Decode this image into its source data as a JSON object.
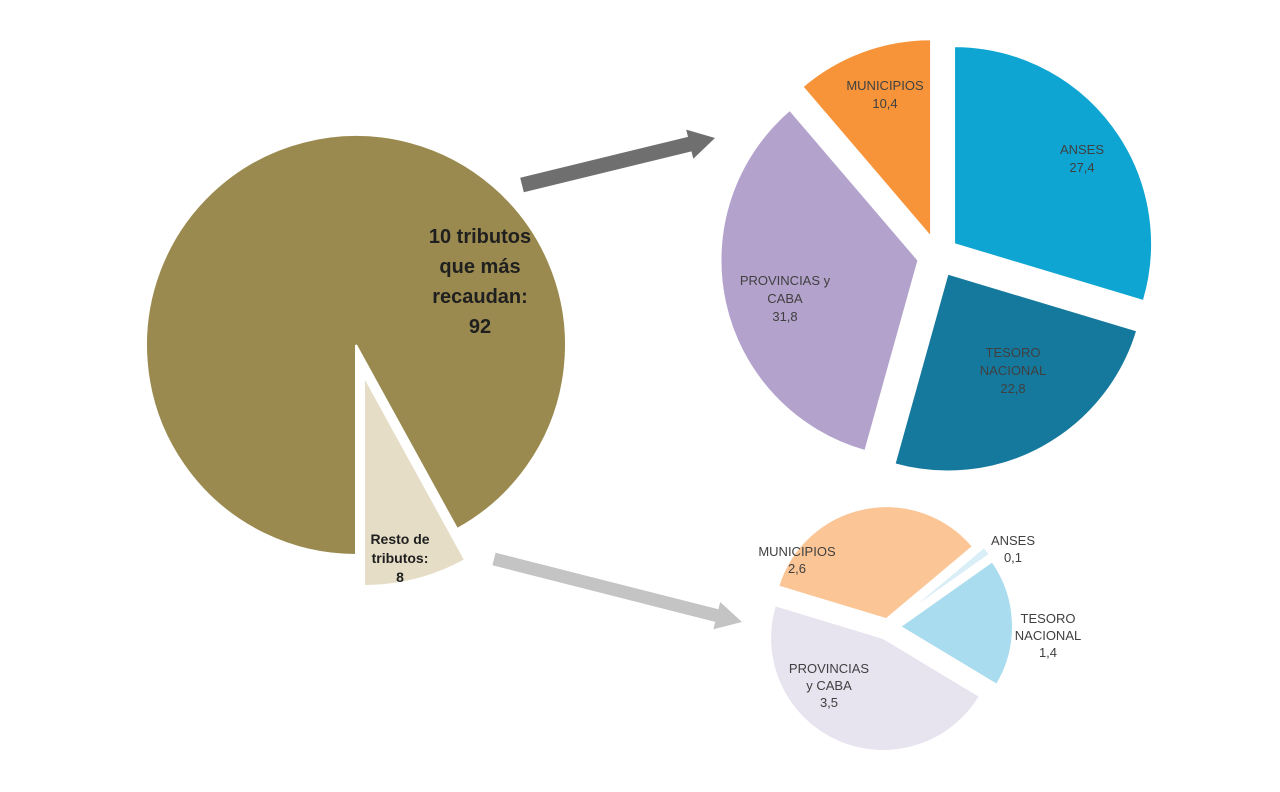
{
  "chart_data": [
    {
      "type": "pie",
      "name": "total",
      "slices": [
        {
          "label_lines": [
            "10 tributos",
            "que más",
            "recaudan:",
            "92"
          ],
          "value": 92,
          "color": "#9a8a4f",
          "exploded": false
        },
        {
          "label_lines": [
            "Resto de",
            "tributos:",
            "8"
          ],
          "value": 8,
          "color": "#e5ddc6",
          "exploded": true
        }
      ]
    },
    {
      "type": "pie",
      "name": "top10_breakdown",
      "slices": [
        {
          "label_lines": [
            "ANSES",
            "27,4"
          ],
          "value": 27.4,
          "color": "#0ea5d3"
        },
        {
          "label_lines": [
            "TESORO",
            "NACIONAL",
            "22,8"
          ],
          "value": 22.8,
          "color": "#15799e"
        },
        {
          "label_lines": [
            "PROVINCIAS y",
            "CABA",
            "31,8"
          ],
          "value": 31.8,
          "color": "#b3a2cc"
        },
        {
          "label_lines": [
            "MUNICIPIOS",
            "10,4"
          ],
          "value": 10.4,
          "color": "#f7943a"
        }
      ]
    },
    {
      "type": "pie",
      "name": "rest_breakdown",
      "slices": [
        {
          "label_lines": [
            "ANSES",
            "0,1"
          ],
          "value": 0.1,
          "color": "#d9eef6"
        },
        {
          "label_lines": [
            "TESORO",
            "NACIONAL",
            "1,4"
          ],
          "value": 1.4,
          "color": "#a9dcee"
        },
        {
          "label_lines": [
            "PROVINCIAS",
            "y CABA",
            "3,5"
          ],
          "value": 3.5,
          "color": "#e7e3ef"
        },
        {
          "label_lines": [
            "MUNICIPIOS",
            "2,6"
          ],
          "value": 2.6,
          "color": "#fbc596"
        }
      ]
    }
  ],
  "arrows": [
    {
      "from": "top10",
      "to": "top10_breakdown",
      "color": "#6f6f6f"
    },
    {
      "from": "rest",
      "to": "rest_breakdown",
      "color": "#c4c4c4"
    }
  ]
}
